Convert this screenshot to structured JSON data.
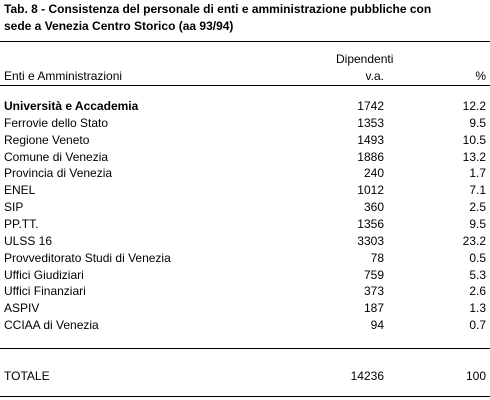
{
  "header": {
    "title_lines": [
      "Tab. 8 - Consistenza del personale di enti e amministrazione pubbliche con",
      "sede a Venezia Centro Storico (aa 93/94)"
    ]
  },
  "table": {
    "group_header": "Dipendenti",
    "columns": [
      "Enti e Amministrazioni",
      "v.a.",
      "%"
    ],
    "rows": [
      [
        "Università e Accademia",
        1742,
        12.2
      ],
      [
        "Ferrovie dello Stato",
        1353,
        9.5
      ],
      [
        "Regione Veneto",
        1493,
        10.5
      ],
      [
        "Comune di Venezia",
        1886,
        13.2
      ],
      [
        "Provincia di Venezia",
        240,
        1.7
      ],
      [
        "ENEL",
        1012,
        7.1
      ],
      [
        "SIP",
        360,
        2.5
      ],
      [
        "PP.TT.",
        1356,
        9.5
      ],
      [
        "ULSS 16",
        3303,
        23.2
      ],
      [
        "Provveditorato Studi di Venezia",
        78,
        0.5
      ],
      [
        "Uffici Giudiziari",
        759,
        5.3
      ],
      [
        "Uffici Finanziari",
        373,
        2.6
      ],
      [
        "ASPIV",
        187,
        1.3
      ],
      [
        "CCIAA di Venezia",
        94,
        0.7
      ]
    ],
    "total": [
      "TOTALE",
      14236,
      100
    ]
  }
}
